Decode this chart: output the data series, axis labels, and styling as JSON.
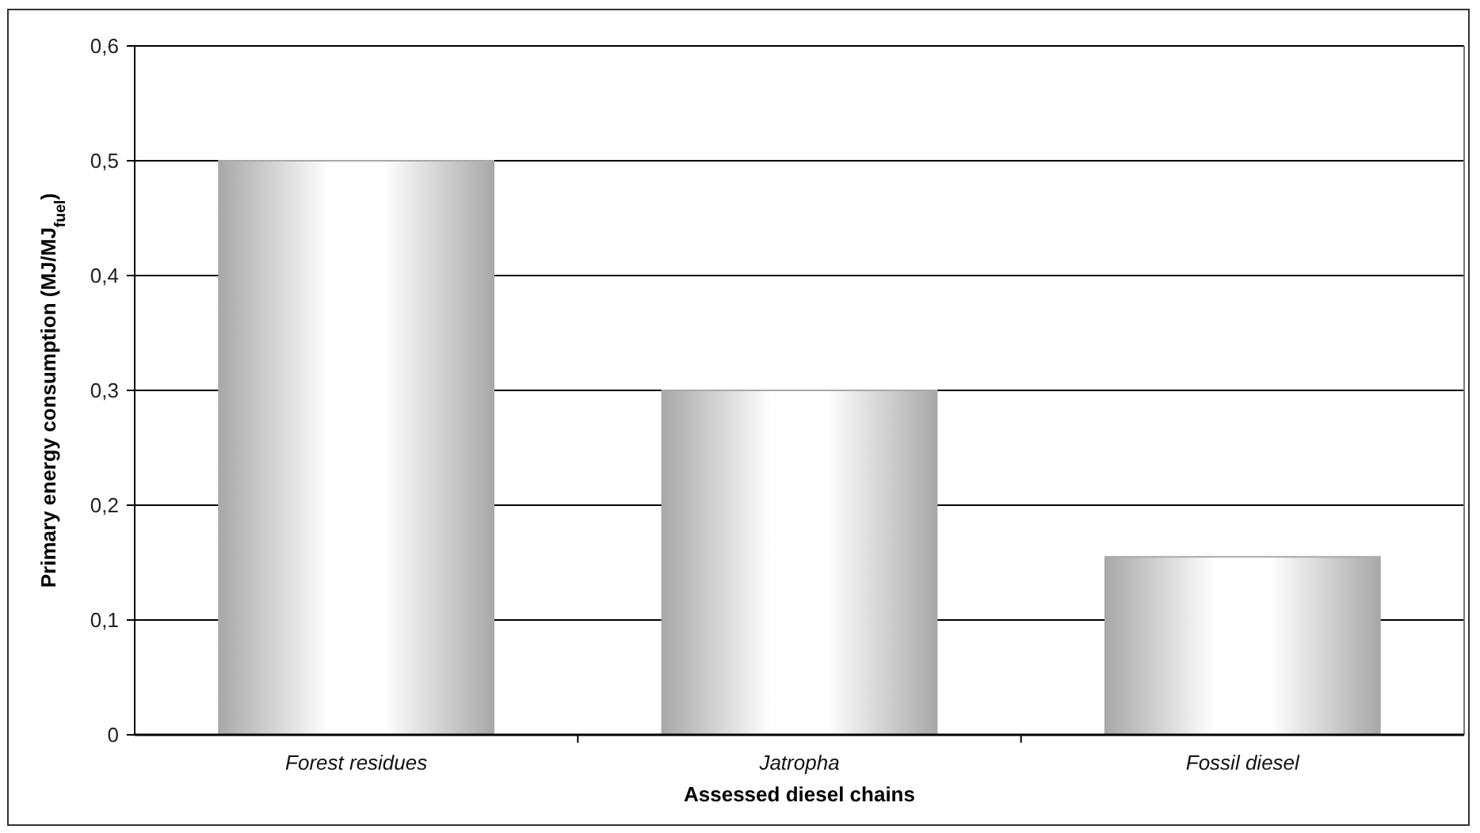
{
  "chart_data": {
    "type": "bar",
    "xlabel": "Assessed diesel chains",
    "ylabel": "Primary energy consumption (MJ/MJ$_{fuel}$)",
    "categories": [
      "Forest residues",
      "Jatropha",
      "Fossil diesel"
    ],
    "values": [
      0.5,
      0.3,
      0.155
    ],
    "color": "#a8a8a8",
    "ylim": [
      0,
      0.6
    ],
    "yticks": [
      0,
      {
        "value": 0.1,
        "label": "0,1"
      },
      {
        "value": 0.2,
        "label": "0,2"
      },
      {
        "value": 0.3,
        "label": "0,3"
      },
      {
        "value": 0.4,
        "label": "0,4"
      },
      {
        "value": 0.5,
        "label": "0,5"
      },
      {
        "value": 0.6,
        "label": "0,6"
      }
    ],
    "grid": "y"
  }
}
